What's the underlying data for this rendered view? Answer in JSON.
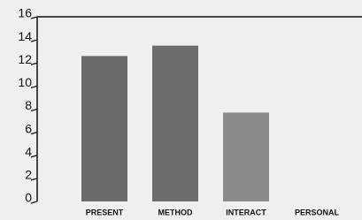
{
  "chart_data": {
    "type": "bar",
    "categories": [
      "PRESENT",
      "METHOD",
      "INTERACT",
      "PERSONAL"
    ],
    "values": [
      12.6,
      13.5,
      7.7,
      0
    ],
    "colors": [
      "#6b6b6b",
      "#6d6d6d",
      "#8a8a8a",
      "#8a8a8a"
    ],
    "ylim": [
      0,
      16
    ],
    "yticks": [
      0,
      2,
      4,
      6,
      8,
      10,
      12,
      14,
      16
    ]
  }
}
